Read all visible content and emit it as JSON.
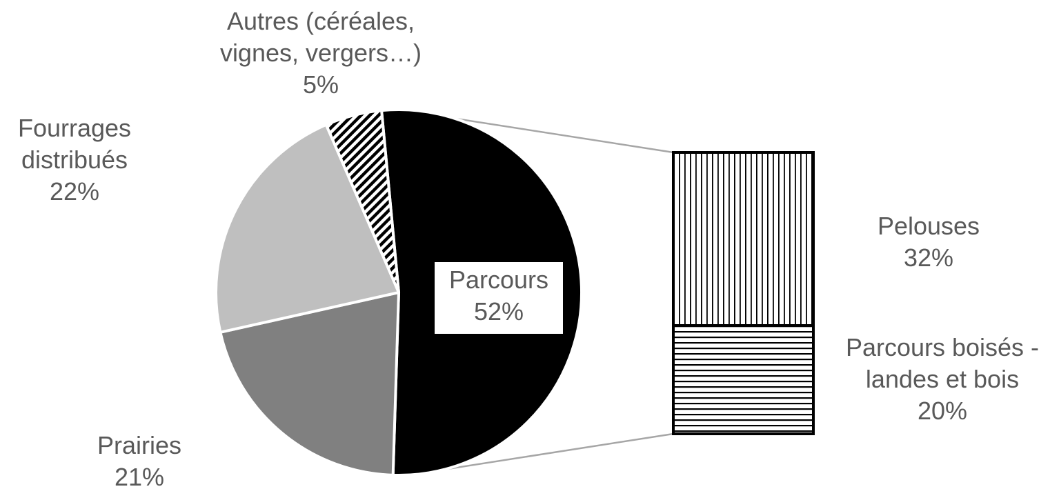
{
  "chart_data": {
    "type": "pie",
    "subtype": "bar-of-pie",
    "pie": {
      "slices": [
        {
          "name": "Parcours",
          "value": 52,
          "color": "#000000",
          "pattern": "solid",
          "label_lines": [
            "Parcours",
            "52%"
          ],
          "label_boxed": true
        },
        {
          "name": "Prairies",
          "value": 21,
          "color": "#808080",
          "pattern": "solid",
          "label_lines": [
            "Prairies",
            "21%"
          ]
        },
        {
          "name": "Fourrages distribués",
          "value": 22,
          "color": "#bfbfbf",
          "pattern": "solid",
          "label_lines": [
            "Fourrages",
            "distribués",
            "22%"
          ]
        },
        {
          "name": "Autres (céréales, vignes, vergers…)",
          "value": 5,
          "color": "#000000",
          "pattern": "diagonal-stripes",
          "label_lines": [
            "Autres (céréales,",
            "vignes, vergers…)",
            "5%"
          ]
        }
      ]
    },
    "bar": {
      "segments": [
        {
          "name": "Pelouses",
          "value": 32,
          "pattern": "vertical-stripes",
          "label_lines": [
            "Pelouses",
            "32%"
          ]
        },
        {
          "name": "Parcours boisés - landes et bois",
          "value": 20,
          "pattern": "horizontal-stripes",
          "label_lines": [
            "Parcours boisés -",
            "landes et bois",
            "20%"
          ]
        }
      ]
    },
    "legend": "none",
    "title": ""
  }
}
